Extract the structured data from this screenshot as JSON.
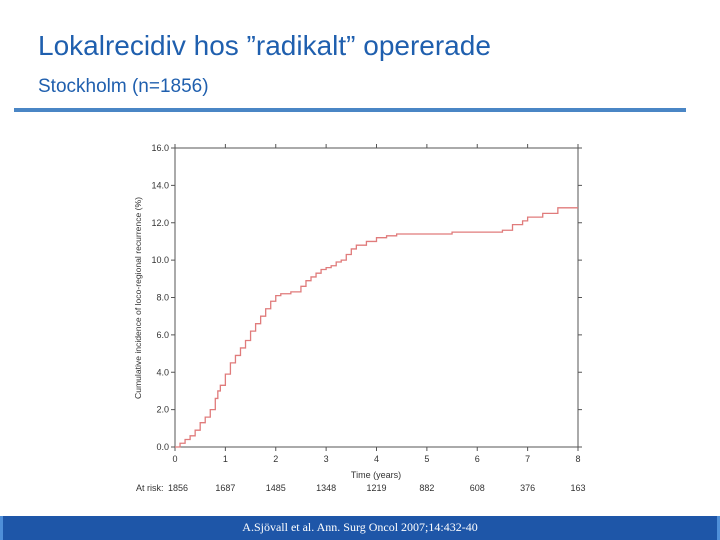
{
  "slide": {
    "title": "Lokalrecidiv hos ”radikalt” opererade",
    "subtitle": "Stockholm (n=1856)",
    "citation": "A.Sjövall et al. Ann. Surg Oncol 2007;14:432-40"
  },
  "colors": {
    "title": "#1f5fae",
    "rule": "#4a86c5",
    "footer": "#1e56a8",
    "curve": "#e07b7b",
    "axis": "#555555"
  },
  "chart_data": {
    "type": "line",
    "xlabel": "Time (years)",
    "ylabel": "Cumulative incidence of loco-regional recurrence (%)",
    "xlim": [
      0,
      8
    ],
    "ylim": [
      0,
      16
    ],
    "x_ticks": [
      "0",
      "1",
      "2",
      "3",
      "4",
      "5",
      "6",
      "7",
      "8"
    ],
    "y_ticks": [
      "0.0",
      "2.0",
      "4.0",
      "6.0",
      "8.0",
      "10.0",
      "12.0",
      "14.0",
      "16.0"
    ],
    "grid": false,
    "series": [
      {
        "x": [
          0,
          0.1,
          0.2,
          0.3,
          0.4,
          0.5,
          0.6,
          0.7,
          0.8,
          0.85,
          0.9,
          1.0,
          1.1,
          1.2,
          1.3,
          1.4,
          1.5,
          1.6,
          1.7,
          1.8,
          1.9,
          2.0,
          2.1,
          2.2,
          2.3,
          2.4,
          2.5,
          2.6,
          2.7,
          2.8,
          2.9,
          3.0,
          3.1,
          3.2,
          3.3,
          3.4,
          3.5,
          3.6,
          3.8,
          4.0,
          4.2,
          4.4,
          4.5,
          5.0,
          5.5,
          6.0,
          6.3,
          6.5,
          6.7,
          6.9,
          7.0,
          7.3,
          7.6,
          8.0
        ],
        "y": [
          0,
          0.2,
          0.4,
          0.6,
          0.9,
          1.3,
          1.6,
          2.0,
          2.6,
          3.0,
          3.3,
          3.9,
          4.5,
          4.9,
          5.3,
          5.7,
          6.2,
          6.6,
          7.0,
          7.4,
          7.8,
          8.1,
          8.2,
          8.2,
          8.3,
          8.3,
          8.6,
          8.9,
          9.1,
          9.3,
          9.5,
          9.6,
          9.7,
          9.9,
          10.0,
          10.3,
          10.6,
          10.8,
          11.0,
          11.2,
          11.3,
          11.4,
          11.4,
          11.4,
          11.5,
          11.5,
          11.5,
          11.6,
          11.9,
          12.1,
          12.3,
          12.5,
          12.8,
          12.8
        ]
      }
    ],
    "at_risk": {
      "label": "At risk:",
      "values": [
        "1856",
        "1687",
        "1485",
        "1348",
        "1219",
        "882",
        "608",
        "376",
        "163"
      ]
    }
  }
}
